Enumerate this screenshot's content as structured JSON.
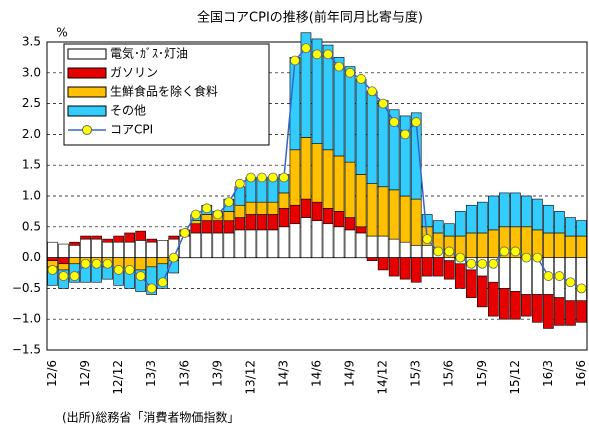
{
  "chart_data": {
    "type": "bar",
    "stacked": true,
    "title": "全国コアCPIの推移(前年同月比寄与度)",
    "y_label": "%",
    "source": "(出所)総務省「消費者物価指数」",
    "categories": [
      "12/6",
      null,
      null,
      "12/9",
      null,
      null,
      "12/12",
      null,
      null,
      "13/3",
      null,
      null,
      "13/6",
      null,
      null,
      "13/9",
      null,
      null,
      "13/12",
      null,
      null,
      "14/3",
      null,
      null,
      "14/6",
      null,
      null,
      "14/9",
      null,
      null,
      "14/12",
      null,
      null,
      "15/3",
      null,
      null,
      "15/6",
      null,
      null,
      "15/9",
      null,
      null,
      "15/12",
      null,
      null,
      "16/3",
      null,
      null,
      "16/6"
    ],
    "ylim": [
      -1.5,
      3.5
    ],
    "yticks": [
      {
        "value": -1.5,
        "label": "−1.5"
      },
      {
        "value": -1,
        "label": "−1.0"
      },
      {
        "value": -0.5,
        "label": "−0.5"
      },
      {
        "value": 0,
        "label": "0.0"
      },
      0.5,
      {
        "value": 1,
        "label": "1.0"
      },
      1.5,
      {
        "value": 2,
        "label": "2.0"
      },
      2.5,
      {
        "value": 3,
        "label": "3.0"
      },
      3.5
    ],
    "grid": true,
    "legend": "upper left",
    "series": [
      {
        "name": "電気･ｶﾞｽ･灯油",
        "color": "#ffffff",
        "values": [
          0.25,
          0.22,
          0.2,
          0.3,
          0.3,
          0.25,
          0.25,
          0.25,
          0.28,
          0.25,
          0.28,
          0.3,
          0.35,
          0.4,
          0.4,
          0.4,
          0.4,
          0.45,
          0.45,
          0.45,
          0.45,
          0.5,
          0.55,
          0.65,
          0.6,
          0.55,
          0.5,
          0.45,
          0.4,
          0.35,
          0.35,
          0.3,
          0.25,
          0.2,
          0.2,
          0.1,
          -0.05,
          -0.1,
          -0.2,
          -0.3,
          -0.4,
          -0.5,
          -0.55,
          -0.6,
          -0.6,
          -0.6,
          -0.65,
          -0.7,
          -0.7
        ]
      },
      {
        "name": "ガソリン",
        "color": "#e60000",
        "values": [
          -0.05,
          -0.1,
          0.05,
          0.05,
          0.05,
          0.05,
          0.1,
          0.15,
          0.15,
          0.05,
          0,
          0.05,
          0.1,
          0.15,
          0.2,
          0.2,
          0.2,
          0.2,
          0.25,
          0.25,
          0.25,
          0.3,
          0.3,
          0.3,
          0.3,
          0.25,
          0.25,
          0.2,
          0.1,
          -0.05,
          -0.2,
          -0.3,
          -0.35,
          -0.4,
          -0.3,
          -0.3,
          -0.3,
          -0.4,
          -0.45,
          -0.5,
          -0.55,
          -0.5,
          -0.45,
          -0.35,
          -0.45,
          -0.55,
          -0.45,
          -0.4,
          -0.35
        ]
      },
      {
        "name": "生鮮食品を除く食料",
        "color": "#ffc000",
        "values": [
          -0.1,
          -0.1,
          -0.1,
          -0.1,
          -0.1,
          -0.15,
          -0.2,
          -0.2,
          -0.2,
          -0.15,
          -0.1,
          -0.05,
          0,
          0.05,
          0.1,
          0.1,
          0.15,
          0.2,
          0.2,
          0.2,
          0.2,
          0.25,
          0.9,
          1.0,
          0.95,
          0.95,
          0.9,
          0.9,
          0.85,
          0.85,
          0.8,
          0.8,
          0.75,
          0.75,
          0.3,
          0.3,
          0.35,
          0.35,
          0.4,
          0.4,
          0.45,
          0.5,
          0.5,
          0.5,
          0.45,
          0.4,
          0.4,
          0.35,
          0.35
        ]
      },
      {
        "name": "その他",
        "color": "#33ccff",
        "values": [
          -0.3,
          -0.3,
          -0.3,
          -0.3,
          -0.3,
          -0.2,
          -0.25,
          -0.3,
          -0.35,
          -0.45,
          -0.4,
          -0.2,
          0,
          0.1,
          0.15,
          0.05,
          0.2,
          0.3,
          0.4,
          0.4,
          0.4,
          0.3,
          1.5,
          1.7,
          1.7,
          1.7,
          1.6,
          1.55,
          1.55,
          1.5,
          1.4,
          1.3,
          1.3,
          1.4,
          0.2,
          0.2,
          0.2,
          0.4,
          0.45,
          0.5,
          0.55,
          0.55,
          0.55,
          0.5,
          0.5,
          0.45,
          0.35,
          0.3,
          0.25
        ]
      },
      {
        "name": "コアCPI",
        "type": "line",
        "color": "#3366cc",
        "marker_color": "#ffff00",
        "values": [
          -0.2,
          -0.3,
          -0.3,
          -0.1,
          -0.1,
          -0.1,
          -0.2,
          -0.2,
          -0.3,
          -0.5,
          -0.4,
          0.0,
          0.4,
          0.7,
          0.8,
          0.7,
          0.9,
          1.2,
          1.3,
          1.3,
          1.3,
          1.3,
          3.2,
          3.4,
          3.3,
          3.3,
          3.1,
          3.0,
          2.9,
          2.7,
          2.5,
          2.2,
          2.0,
          2.2,
          0.3,
          0.1,
          0.1,
          0.0,
          -0.1,
          -0.1,
          -0.1,
          0.1,
          0.1,
          0.0,
          0.0,
          -0.3,
          -0.3,
          -0.4,
          -0.5
        ]
      }
    ]
  }
}
